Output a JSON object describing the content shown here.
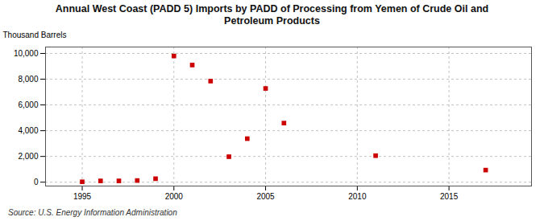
{
  "chart_data": {
    "type": "scatter",
    "title": "Annual West Coast (PADD 5) Imports by PADD of Processing from Yemen of Crude Oil and\nPetroleum Products",
    "ylabel": "Thousand Barrels",
    "source": "Source: U.S. Energy Information Administration",
    "x": [
      1995,
      1996,
      1997,
      1998,
      1999,
      2000,
      2001,
      2002,
      2003,
      2004,
      2005,
      2006,
      2011,
      2017
    ],
    "values": [
      30,
      100,
      100,
      130,
      270,
      9800,
      9100,
      7850,
      1980,
      3380,
      7280,
      4590,
      2060,
      940
    ],
    "color": "#cc0000",
    "marker": "square",
    "xlim": [
      1993,
      2019.5
    ],
    "ylim": [
      -300,
      10500
    ],
    "xticks": [
      1995,
      2000,
      2005,
      2010,
      2015
    ],
    "yticks": [
      0,
      {
        "value": 2000,
        "label": "2,000"
      },
      {
        "value": 4000,
        "label": "4,000"
      },
      {
        "value": 6000,
        "label": "6,000"
      },
      {
        "value": 8000,
        "label": "8,000"
      },
      {
        "value": 10000,
        "label": "10,000"
      }
    ],
    "grid": true
  }
}
